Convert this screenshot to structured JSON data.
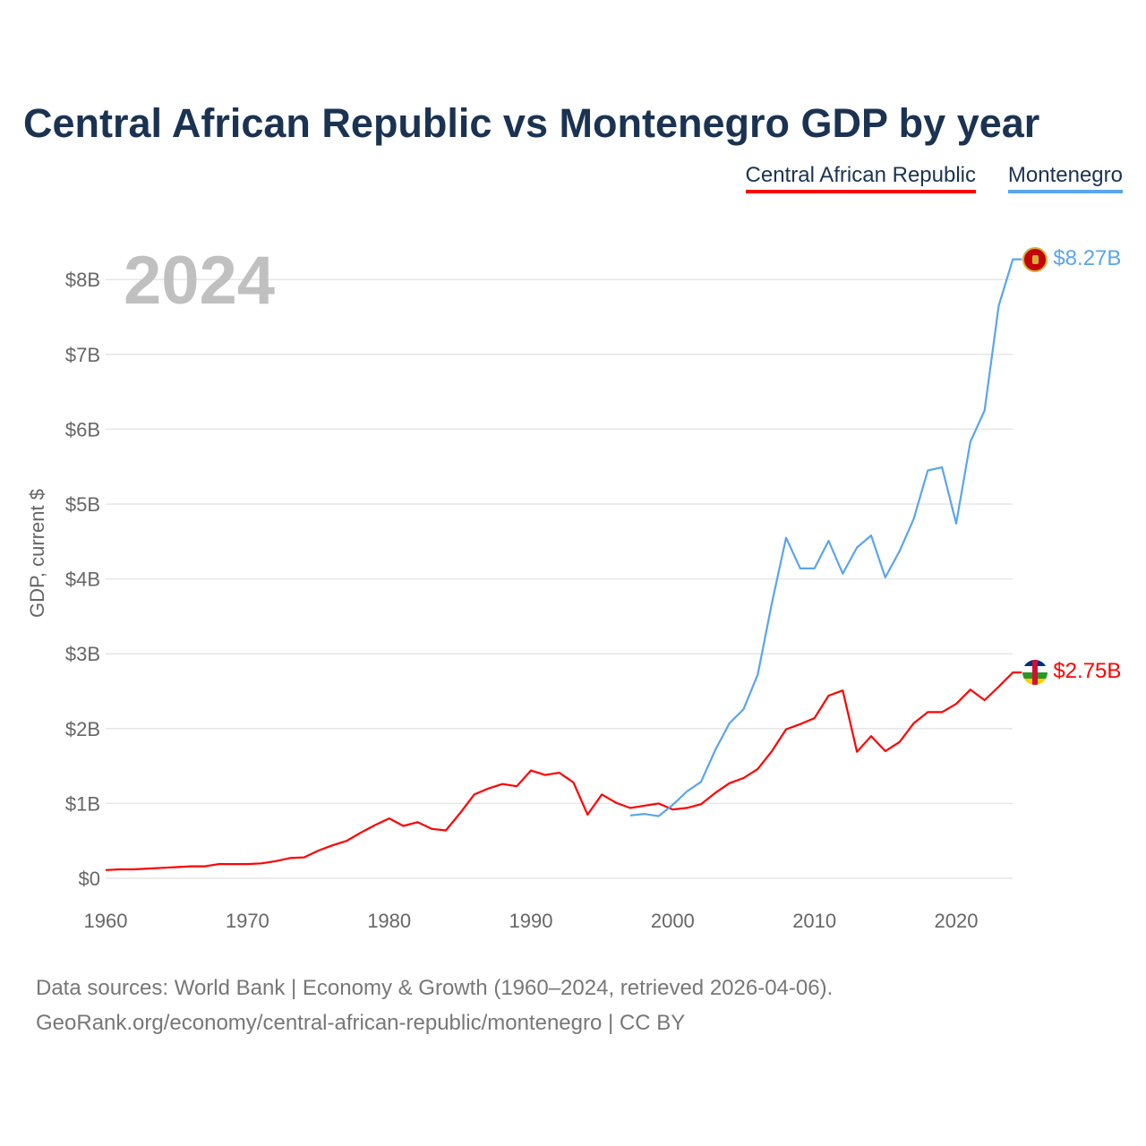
{
  "title": "Central African Republic vs Montenegro GDP by year",
  "year_label": "2024",
  "footer": {
    "line1": "Data sources: World Bank | Economy & Growth (1960–2024, retrieved 2026-04-06).",
    "line2": "GeoRank.org/economy/central-african-republic/montenegro | CC BY"
  },
  "chart_data": {
    "type": "line",
    "title": "Central African Republic vs Montenegro GDP by year",
    "xlabel": "",
    "ylabel": "GDP, current $",
    "xlim": [
      1960,
      2024
    ],
    "ylim": [
      0,
      8.5
    ],
    "x_ticks": [
      1960,
      1970,
      1980,
      1990,
      2000,
      2010,
      2020
    ],
    "y_ticks": [
      0,
      1,
      2,
      3,
      4,
      5,
      6,
      7,
      8
    ],
    "y_tick_labels": [
      "$0",
      "$1B",
      "$2B",
      "$3B",
      "$4B",
      "$5B",
      "$6B",
      "$7B",
      "$8B"
    ],
    "legend_placement": "top-right",
    "grid": true,
    "series": [
      {
        "name": "Central African Republic",
        "color": "#ff0000",
        "start_year": 1960,
        "end_label": "$2.75B",
        "values": [
          0.11,
          0.12,
          0.12,
          0.13,
          0.14,
          0.15,
          0.16,
          0.16,
          0.19,
          0.19,
          0.19,
          0.2,
          0.23,
          0.27,
          0.28,
          0.37,
          0.44,
          0.5,
          0.61,
          0.71,
          0.8,
          0.7,
          0.75,
          0.66,
          0.64,
          0.87,
          1.12,
          1.2,
          1.26,
          1.23,
          1.44,
          1.38,
          1.41,
          1.28,
          0.85,
          1.12,
          1.01,
          0.94,
          0.97,
          1.0,
          0.92,
          0.94,
          0.99,
          1.14,
          1.27,
          1.34,
          1.46,
          1.7,
          1.99,
          2.06,
          2.14,
          2.44,
          2.51,
          1.69,
          1.9,
          1.7,
          1.82,
          2.07,
          2.22,
          2.22,
          2.33,
          2.52,
          2.38,
          2.56,
          2.75
        ]
      },
      {
        "name": "Montenegro",
        "color": "#5aa5ec",
        "start_year": 1997,
        "end_label": "$8.27B",
        "values": [
          0.84,
          0.86,
          0.83,
          0.98,
          1.16,
          1.29,
          1.71,
          2.07,
          2.26,
          2.72,
          3.68,
          4.55,
          4.14,
          4.14,
          4.51,
          4.07,
          4.42,
          4.58,
          4.02,
          4.37,
          4.8,
          5.45,
          5.49,
          4.74,
          5.83,
          6.25,
          7.65,
          8.27
        ]
      }
    ]
  }
}
